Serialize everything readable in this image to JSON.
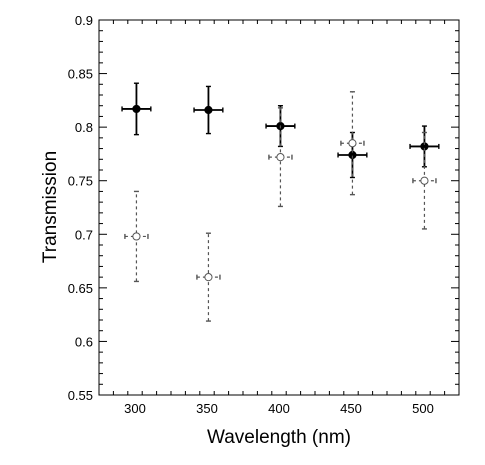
{
  "chart_data": {
    "type": "scatter",
    "xlabel": "Wavelength (nm)",
    "ylabel": "Transmission",
    "xlim": [
      275,
      525
    ],
    "ylim": [
      0.55,
      0.9
    ],
    "x_ticks": [
      300,
      350,
      400,
      450,
      500
    ],
    "x_tick_labels": [
      "300",
      "350",
      "400",
      "450",
      "500"
    ],
    "y_ticks": [
      0.55,
      0.6,
      0.65,
      0.7,
      0.75,
      0.8,
      0.85,
      0.9
    ],
    "y_tick_labels": [
      "0.55",
      "0.6",
      "0.65",
      "0.7",
      "0.75",
      "0.8",
      "0.85",
      "0.9"
    ],
    "grid": false,
    "series": [
      {
        "marker": "filled-circle",
        "error_line": "solid",
        "color": "#000000",
        "points": [
          {
            "x": 301,
            "y": 0.817,
            "xerr": 10,
            "yerr": 0.024
          },
          {
            "x": 351,
            "y": 0.816,
            "xerr": 10,
            "yerr": 0.022
          },
          {
            "x": 401,
            "y": 0.801,
            "xerr": 10,
            "yerr": 0.019
          },
          {
            "x": 451,
            "y": 0.774,
            "xerr": 10,
            "yerr": 0.021
          },
          {
            "x": 501,
            "y": 0.782,
            "xerr": 10,
            "yerr": 0.019
          }
        ]
      },
      {
        "marker": "open-circle",
        "error_line": "dashed",
        "color": "#555555",
        "points": [
          {
            "x": 301,
            "y": 0.698,
            "xerr": 8,
            "yerr": 0.042
          },
          {
            "x": 351,
            "y": 0.66,
            "xerr": 8,
            "yerr": 0.041
          },
          {
            "x": 401,
            "y": 0.772,
            "xerr": 8,
            "yerr": 0.046
          },
          {
            "x": 451,
            "y": 0.785,
            "xerr": 8,
            "yerr": 0.048
          },
          {
            "x": 501,
            "y": 0.75,
            "xerr": 8,
            "yerr": 0.045
          }
        ]
      }
    ]
  }
}
